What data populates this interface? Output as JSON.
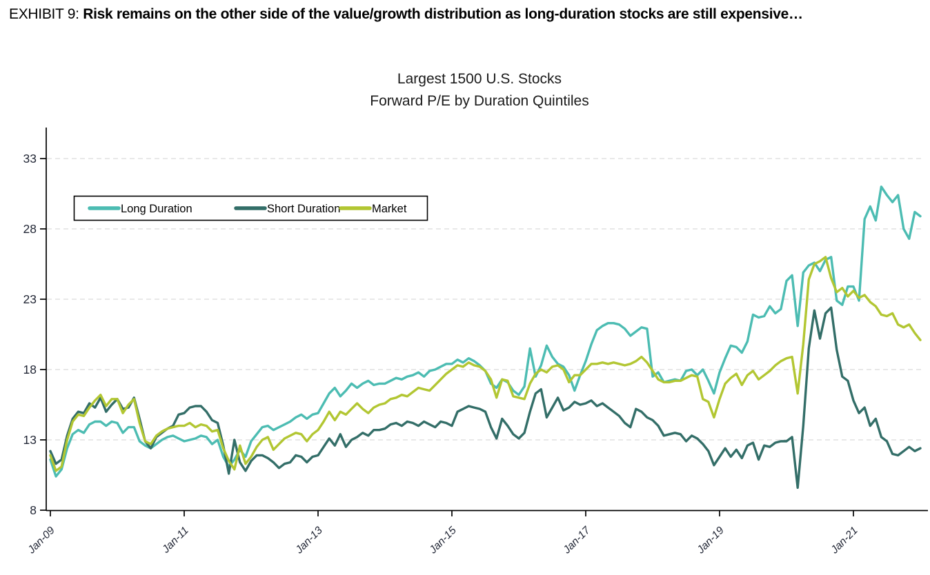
{
  "exhibit": {
    "label": "EXHIBIT 9:",
    "title": "Risk remains on the other side of the value/growth distribution as long-duration stocks are still expensive…"
  },
  "colors": {
    "long_duration": "#4CBCB2",
    "short_duration": "#336E68",
    "market": "#B2C632",
    "gridline": "#D9D9D9",
    "axis": "#000000",
    "tick_text": "#1F2433",
    "title_text": "#1A1A1A"
  },
  "chart_data": {
    "type": "line",
    "title_line1": "Largest 1500 U.S. Stocks",
    "title_line2": "Forward P/E by Duration Quintiles",
    "x_start": "2009-01",
    "x_step_months": 1,
    "x_tick_labels": [
      "Jan-09",
      "Jan-11",
      "Jan-13",
      "Jan-15",
      "Jan-17",
      "Jan-19",
      "Jan-21"
    ],
    "y_ticks": [
      8,
      13,
      18,
      23,
      28,
      33
    ],
    "ylim": [
      8,
      34.5
    ],
    "grid": "horizontal-dashed",
    "legend_position": "top-left-inside",
    "series": [
      {
        "name": "Long Duration",
        "color": "#4CBCB2",
        "values": [
          11.6,
          10.4,
          10.9,
          12.4,
          13.4,
          13.7,
          13.5,
          14.1,
          14.3,
          14.3,
          14.0,
          14.3,
          14.2,
          13.5,
          13.9,
          13.9,
          12.9,
          12.6,
          12.4,
          12.7,
          13.0,
          13.2,
          13.3,
          13.1,
          12.9,
          13.0,
          13.1,
          13.3,
          13.2,
          12.7,
          13.0,
          11.8,
          11.1,
          11.6,
          12.3,
          11.8,
          12.9,
          13.4,
          13.9,
          14.0,
          13.7,
          13.9,
          14.1,
          14.3,
          14.6,
          14.8,
          14.5,
          14.8,
          14.9,
          15.6,
          16.3,
          16.7,
          16.1,
          16.5,
          17.0,
          16.7,
          17.0,
          17.2,
          16.9,
          17.0,
          17.0,
          17.2,
          17.4,
          17.3,
          17.5,
          17.6,
          17.8,
          17.5,
          17.9,
          18.0,
          18.2,
          18.4,
          18.4,
          18.7,
          18.5,
          18.8,
          18.6,
          18.3,
          17.9,
          17.0,
          16.7,
          17.3,
          17.1,
          16.5,
          16.2,
          16.8,
          19.5,
          17.5,
          18.3,
          19.7,
          18.9,
          18.4,
          18.2,
          17.6,
          16.5,
          17.6,
          18.6,
          19.8,
          20.8,
          21.1,
          21.3,
          21.3,
          21.2,
          20.9,
          20.4,
          20.7,
          21.0,
          20.9,
          17.5,
          17.8,
          17.1,
          17.2,
          17.3,
          17.2,
          17.9,
          18.0,
          17.6,
          18.0,
          17.2,
          16.3,
          17.8,
          18.8,
          19.7,
          19.6,
          19.2,
          20.0,
          21.9,
          21.7,
          21.8,
          22.5,
          22.0,
          22.3,
          24.3,
          24.7,
          21.1,
          24.9,
          25.4,
          25.6,
          25.0,
          25.8,
          26.0,
          22.9,
          22.6,
          23.9,
          23.9,
          22.9,
          28.7,
          29.6,
          28.6,
          31.0,
          30.4,
          29.9,
          30.4,
          28.0,
          27.3,
          29.2,
          28.9
        ]
      },
      {
        "name": "Short Duration",
        "color": "#336E68",
        "values": [
          12.2,
          11.3,
          11.6,
          13.3,
          14.5,
          15.0,
          14.9,
          15.6,
          15.3,
          16.0,
          15.0,
          15.5,
          15.9,
          15.2,
          15.3,
          16.0,
          14.5,
          12.9,
          12.4,
          13.2,
          13.5,
          13.8,
          14.0,
          14.8,
          14.9,
          15.3,
          15.4,
          15.4,
          15.0,
          14.4,
          14.2,
          12.6,
          10.6,
          13.0,
          11.4,
          10.8,
          11.5,
          11.9,
          11.9,
          11.7,
          11.4,
          11.0,
          11.3,
          11.4,
          11.9,
          11.8,
          11.4,
          11.8,
          11.9,
          12.5,
          13.1,
          12.6,
          13.4,
          12.5,
          13.0,
          13.2,
          13.5,
          13.3,
          13.7,
          13.7,
          13.8,
          14.1,
          14.2,
          14.0,
          14.3,
          14.2,
          14.0,
          14.3,
          14.1,
          13.9,
          14.3,
          14.2,
          14.0,
          15.0,
          15.2,
          15.4,
          15.3,
          15.2,
          15.0,
          13.9,
          13.1,
          14.5,
          14.0,
          13.4,
          13.1,
          13.5,
          15.0,
          16.3,
          16.6,
          14.6,
          15.3,
          16.0,
          15.1,
          15.3,
          15.7,
          15.5,
          15.6,
          15.8,
          15.4,
          15.6,
          15.3,
          15.0,
          14.7,
          14.2,
          13.9,
          15.2,
          15.0,
          14.6,
          14.4,
          14.0,
          13.3,
          13.4,
          13.5,
          13.4,
          12.9,
          13.3,
          13.1,
          12.7,
          12.2,
          11.2,
          11.8,
          12.4,
          11.8,
          12.3,
          11.7,
          12.6,
          12.8,
          11.6,
          12.6,
          12.5,
          12.8,
          12.9,
          12.9,
          13.2,
          9.6,
          14.0,
          19.5,
          22.2,
          20.2,
          22.0,
          22.4,
          19.4,
          17.5,
          17.2,
          15.8,
          14.9,
          15.3,
          14.0,
          14.5,
          13.2,
          12.9,
          12.0,
          11.9,
          12.2,
          12.5,
          12.2,
          12.4
        ]
      },
      {
        "name": "Market",
        "color": "#B2C632",
        "values": [
          11.9,
          10.8,
          11.1,
          13.0,
          14.3,
          14.8,
          14.7,
          15.3,
          15.8,
          16.2,
          15.4,
          15.9,
          15.9,
          14.9,
          15.5,
          15.9,
          14.2,
          12.9,
          12.7,
          13.3,
          13.6,
          13.8,
          13.9,
          14.0,
          14.0,
          14.2,
          13.9,
          14.1,
          14.0,
          13.6,
          13.7,
          12.4,
          11.5,
          10.9,
          12.6,
          11.3,
          11.8,
          12.5,
          13.0,
          13.2,
          12.3,
          12.7,
          13.1,
          13.3,
          13.5,
          13.4,
          12.9,
          13.4,
          13.7,
          14.3,
          15.0,
          14.4,
          15.0,
          14.8,
          15.2,
          15.6,
          15.2,
          14.9,
          15.3,
          15.5,
          15.6,
          15.9,
          16.0,
          16.2,
          16.1,
          16.4,
          16.7,
          16.6,
          16.5,
          16.9,
          17.3,
          17.7,
          18.0,
          18.3,
          18.2,
          18.5,
          18.3,
          18.2,
          17.9,
          17.3,
          16.0,
          17.3,
          17.2,
          16.1,
          16.0,
          15.9,
          17.0,
          17.7,
          18.0,
          17.8,
          18.2,
          18.3,
          18.0,
          17.1,
          17.6,
          17.6,
          18.0,
          18.4,
          18.4,
          18.5,
          18.4,
          18.5,
          18.4,
          18.3,
          18.4,
          18.6,
          18.9,
          18.5,
          17.9,
          17.3,
          17.1,
          17.1,
          17.2,
          17.2,
          17.4,
          17.6,
          17.5,
          15.9,
          15.7,
          14.6,
          15.9,
          17.0,
          17.4,
          17.7,
          16.9,
          17.6,
          17.9,
          17.3,
          17.6,
          17.9,
          18.3,
          18.6,
          18.8,
          18.9,
          16.3,
          19.8,
          24.4,
          25.5,
          25.7,
          26.0,
          24.5,
          23.5,
          23.8,
          23.2,
          23.6,
          23.1,
          23.3,
          22.8,
          22.5,
          21.9,
          21.8,
          22.0,
          21.2,
          21.0,
          21.2,
          20.6,
          20.1
        ]
      }
    ]
  }
}
